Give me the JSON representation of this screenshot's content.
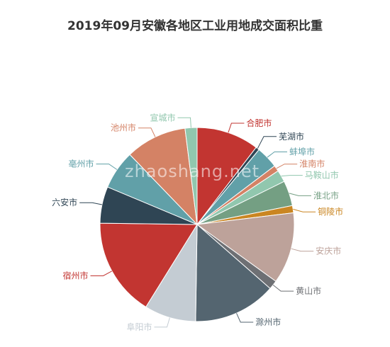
{
  "chart_data": {
    "type": "pie",
    "title": "2019年09月安徽各地区工业用地成交面积比重",
    "series": [
      {
        "label": "合肥市",
        "value": 10.4,
        "color": "#c23531"
      },
      {
        "label": "芜湖市",
        "value": 0.6,
        "color": "#2f4554"
      },
      {
        "label": "蚌埠市",
        "value": 3.7,
        "color": "#61a0a8"
      },
      {
        "label": "淮南市",
        "value": 1.0,
        "color": "#d48265"
      },
      {
        "label": "马鞍山市",
        "value": 2.0,
        "color": "#91c7ae"
      },
      {
        "label": "淮北市",
        "value": 4.2,
        "color": "#749f83"
      },
      {
        "label": "铜陵市",
        "value": 1.2,
        "color": "#ca8622"
      },
      {
        "label": "安庆市",
        "value": 11.9,
        "color": "#bda29a"
      },
      {
        "label": "黄山市",
        "value": 1.5,
        "color": "#6e7074"
      },
      {
        "label": "滁州市",
        "value": 13.8,
        "color": "#546570"
      },
      {
        "label": "阜阳市",
        "value": 8.6,
        "color": "#c4ccd3"
      },
      {
        "label": "宿州市",
        "value": 16.4,
        "color": "#c23531"
      },
      {
        "label": "六安市",
        "value": 6.1,
        "color": "#2f4554"
      },
      {
        "label": "亳州市",
        "value": 6.5,
        "color": "#61a0a8"
      },
      {
        "label": "池州市",
        "value": 10.2,
        "color": "#d48265"
      },
      {
        "label": "宣城市",
        "value": 2.0,
        "color": "#91c7ae"
      }
    ]
  },
  "watermark": "zhaoshang.net"
}
